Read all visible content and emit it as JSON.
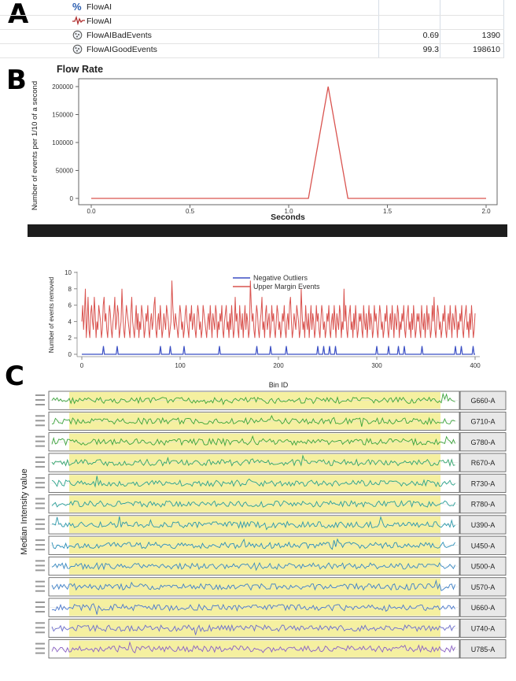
{
  "panels": {
    "a": "A",
    "b": "B",
    "c": "C"
  },
  "table": {
    "rows": [
      {
        "icon": "percent-icon",
        "label": "FlowAI",
        "col1": "",
        "col2": ""
      },
      {
        "icon": "wave-icon",
        "label": "FlowAI",
        "col1": "",
        "col2": ""
      },
      {
        "icon": "gate-icon",
        "label": "FlowAIBadEvents",
        "col1": "0.69",
        "col2": "1390"
      },
      {
        "icon": "gate-icon",
        "label": "FlowAIGoodEvents",
        "col1": "99.3",
        "col2": "198610"
      }
    ]
  },
  "chart_data": [
    {
      "type": "line",
      "title": "Flow Rate",
      "xlabel": "Seconds",
      "ylabel": "Number of events per 1/10 of a second",
      "x": [
        0.0,
        1.1,
        1.2,
        1.3,
        2.0
      ],
      "series": [
        {
          "values": [
            0,
            0,
            200000,
            0,
            0
          ],
          "color": "#d9534f"
        }
      ],
      "xlim": [
        0,
        2.0
      ],
      "ylim": [
        0,
        200000
      ],
      "xticks": [
        "0.0",
        "0.5",
        "1.0",
        "1.5",
        "2.0"
      ],
      "yticks": [
        "0",
        "50000",
        "100000",
        "150000",
        "200000"
      ],
      "grid": false
    },
    {
      "type": "line",
      "xlabel": "Bin ID",
      "ylabel": "Number of events removed",
      "xlim": [
        0,
        400
      ],
      "ylim": [
        0,
        10
      ],
      "xticks": [
        "0",
        "100",
        "200",
        "300",
        "400"
      ],
      "yticks": [
        "0",
        "2",
        "4",
        "6",
        "8",
        "10"
      ],
      "legend": "top-center",
      "series": [
        {
          "name": "Negative Outliers",
          "color": "#3b4fc4",
          "spikes": [
            [
              22,
              1
            ],
            [
              36,
              1
            ],
            [
              80,
              1
            ],
            [
              90,
              1
            ],
            [
              104,
              1
            ],
            [
              140,
              1
            ],
            [
              178,
              1
            ],
            [
              192,
              1
            ],
            [
              208,
              1
            ],
            [
              240,
              1
            ],
            [
              246,
              1
            ],
            [
              252,
              1
            ],
            [
              258,
              1
            ],
            [
              300,
              1
            ],
            [
              312,
              1
            ],
            [
              322,
              1
            ],
            [
              328,
              1
            ],
            [
              346,
              1
            ],
            [
              380,
              1
            ],
            [
              386,
              1
            ],
            [
              398,
              1
            ]
          ]
        },
        {
          "name": "Upper Margin Events",
          "color": "#d9534f",
          "values": [
            4,
            6,
            3,
            5,
            8,
            2,
            4,
            7,
            3,
            2,
            5,
            6,
            4,
            3,
            7,
            5,
            2,
            4,
            3,
            6,
            5,
            4,
            2,
            3,
            6,
            7,
            4,
            5,
            3,
            2,
            4,
            6,
            5,
            3,
            2,
            4,
            5,
            7,
            3,
            4,
            6,
            5,
            2,
            3,
            4,
            8,
            5,
            3,
            2,
            4,
            6,
            5,
            4,
            3,
            2,
            5,
            7,
            4,
            3,
            2,
            4,
            6,
            3,
            5,
            2,
            4,
            3,
            6,
            5,
            4,
            2,
            3,
            5,
            4,
            6,
            3,
            2,
            4,
            5,
            3,
            4,
            6,
            7,
            3,
            2,
            4,
            5,
            3,
            6,
            4,
            2,
            3,
            5,
            4,
            3,
            6,
            5,
            4,
            2,
            3,
            4,
            9,
            6,
            4,
            3,
            5,
            4,
            3,
            2,
            4,
            6,
            5,
            3,
            4,
            2,
            3,
            5,
            6,
            4,
            3,
            2,
            5,
            4,
            6,
            3,
            4,
            5,
            3,
            2,
            4,
            6,
            5,
            3,
            4,
            2,
            3,
            6,
            5,
            4,
            3,
            2,
            4,
            5,
            3,
            6,
            4,
            2,
            5,
            4,
            3,
            6,
            5,
            2,
            4,
            3,
            5,
            4,
            6,
            3,
            2,
            4,
            5,
            6,
            3,
            4,
            2,
            5,
            3,
            6,
            4,
            2,
            3,
            7,
            4,
            5,
            3,
            2,
            6,
            4,
            3,
            5,
            2,
            4,
            6,
            3,
            5,
            4,
            2,
            3,
            9,
            6,
            4,
            5,
            3,
            2,
            4,
            6,
            5,
            3,
            2,
            4,
            5,
            7,
            3,
            4,
            2,
            5,
            6,
            3,
            4,
            5,
            2,
            3,
            6,
            4,
            5,
            3,
            2,
            4,
            6,
            5,
            3,
            4,
            2,
            3,
            5,
            4,
            6,
            3,
            2,
            4,
            5,
            3,
            6,
            7,
            4,
            2,
            3,
            5,
            4,
            3,
            6,
            5,
            4,
            2,
            3,
            8,
            5,
            3,
            4,
            2,
            6,
            4,
            3,
            5,
            2,
            4,
            6,
            3,
            5,
            4,
            2,
            3,
            6,
            4,
            5,
            3,
            2,
            4,
            6,
            5,
            3,
            4,
            2,
            3,
            5,
            4,
            6,
            3,
            2,
            4,
            5,
            3,
            6,
            4,
            2,
            5,
            4,
            3,
            6,
            5,
            2,
            4,
            3,
            8,
            4,
            6,
            3,
            2,
            4,
            5,
            6,
            3,
            4,
            2,
            5,
            3,
            6,
            4,
            2,
            3,
            5,
            4,
            5,
            3,
            2,
            6,
            4,
            3,
            5,
            2,
            4,
            6,
            3,
            5,
            4,
            2,
            3,
            6,
            4,
            5,
            3,
            2,
            4,
            6,
            5,
            3,
            4,
            2,
            3,
            5,
            4,
            6,
            3,
            2,
            4,
            5,
            3,
            6,
            4,
            2,
            5,
            4,
            3,
            6,
            5,
            2,
            4,
            3,
            5,
            4,
            6,
            3,
            2,
            4,
            5,
            6,
            3,
            4,
            2,
            5,
            3,
            6,
            4,
            2,
            3,
            5,
            4,
            5,
            3,
            2,
            6,
            4,
            3,
            5,
            2,
            4,
            6,
            3,
            5,
            4,
            2,
            3,
            6,
            4,
            7,
            3,
            2,
            4,
            6,
            5,
            3,
            4,
            2,
            3,
            5,
            4,
            6,
            3,
            2,
            4,
            5,
            3,
            6,
            4,
            2,
            5,
            4,
            3,
            6,
            5,
            2,
            4,
            3,
            5,
            4,
            6,
            3,
            2,
            4,
            5,
            6,
            3,
            4,
            2,
            5,
            3,
            6,
            4,
            2,
            3,
            5
          ]
        }
      ]
    },
    {
      "type": "line",
      "ylabel": "Median Intensity value",
      "channels": [
        "G660-A",
        "G710-A",
        "G780-A",
        "R670-A",
        "R730-A",
        "R780-A",
        "U390-A",
        "U450-A",
        "U500-A",
        "U570-A",
        "U660-A",
        "U740-A",
        "U785-A"
      ],
      "colors": [
        "#3aa33a",
        "#3aa33a",
        "#3aa33a",
        "#2fa36b",
        "#2aa38a",
        "#2a9f9a",
        "#2a98aa",
        "#2a8fb8",
        "#3688c2",
        "#3d80c8",
        "#4a78cc",
        "#6a6ccc",
        "#8a60c4"
      ]
    }
  ]
}
